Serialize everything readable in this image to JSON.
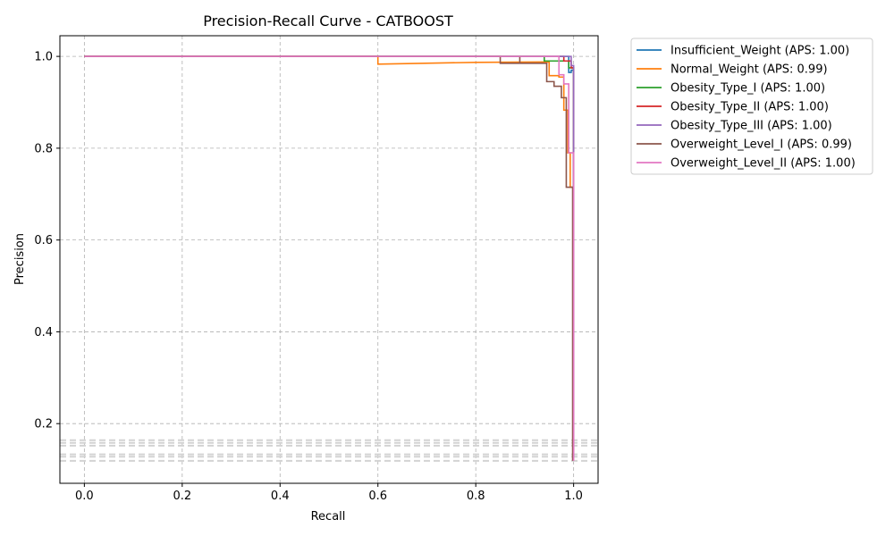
{
  "chart_data": {
    "type": "line",
    "title": "Precision-Recall Curve - CATBOOST",
    "xlabel": "Recall",
    "ylabel": "Precision",
    "xlim": [
      -0.05,
      1.05
    ],
    "ylim": [
      0.07,
      1.045
    ],
    "xticks": [
      0.0,
      0.2,
      0.4,
      0.6,
      0.8,
      1.0
    ],
    "xtick_labels": [
      "0.0",
      "0.2",
      "0.4",
      "0.6",
      "0.8",
      "1.0"
    ],
    "yticks": [
      0.2,
      0.4,
      0.6,
      0.8,
      1.0
    ],
    "ytick_labels": [
      "0.2",
      "0.4",
      "0.6",
      "0.8",
      "1.0"
    ],
    "grid": true,
    "legend_position": "outside-right",
    "baselines": [
      0.119,
      0.128,
      0.133,
      0.152,
      0.158,
      0.164
    ],
    "baseline_color": "#d3d3d3",
    "series": [
      {
        "name": "Insufficient_Weight (APS: 1.00)",
        "color": "#1f77b4",
        "points": [
          [
            0,
            1.0
          ],
          [
            0.99,
            1.0
          ],
          [
            0.99,
            0.965
          ],
          [
            0.995,
            0.965
          ],
          [
            0.995,
            0.97
          ],
          [
            1.0,
            0.97
          ],
          [
            1.0,
            0.128
          ]
        ]
      },
      {
        "name": "Normal_Weight (APS: 0.99)",
        "color": "#ff7f0e",
        "points": [
          [
            0,
            1.0
          ],
          [
            0.6,
            1.0
          ],
          [
            0.6,
            0.983
          ],
          [
            0.8,
            0.987
          ],
          [
            0.95,
            0.988
          ],
          [
            0.95,
            0.958
          ],
          [
            0.97,
            0.958
          ],
          [
            0.97,
            0.955
          ],
          [
            0.98,
            0.955
          ],
          [
            0.98,
            0.883
          ],
          [
            0.988,
            0.883
          ],
          [
            0.988,
            0.79
          ],
          [
            0.993,
            0.79
          ],
          [
            0.993,
            0.715
          ],
          [
            1.0,
            0.715
          ],
          [
            1.0,
            0.164
          ]
        ]
      },
      {
        "name": "Obesity_Type_I (APS: 1.00)",
        "color": "#2ca02c",
        "points": [
          [
            0,
            1.0
          ],
          [
            0.94,
            1.0
          ],
          [
            0.94,
            0.99
          ],
          [
            0.99,
            0.99
          ],
          [
            0.99,
            0.975
          ],
          [
            1.0,
            0.975
          ],
          [
            1.0,
            0.158
          ]
        ]
      },
      {
        "name": "Obesity_Type_II (APS: 1.00)",
        "color": "#d62728",
        "points": [
          [
            0,
            1.0
          ],
          [
            0.98,
            1.0
          ],
          [
            0.98,
            0.99
          ],
          [
            0.995,
            0.99
          ],
          [
            0.995,
            0.975
          ],
          [
            1.0,
            0.975
          ],
          [
            1.0,
            0.152
          ]
        ]
      },
      {
        "name": "Obesity_Type_III (APS: 1.00)",
        "color": "#9467bd",
        "points": [
          [
            0,
            1.0
          ],
          [
            0.995,
            1.0
          ],
          [
            0.995,
            0.98
          ],
          [
            1.0,
            0.98
          ],
          [
            1.0,
            0.133
          ]
        ]
      },
      {
        "name": "Overweight_Level_I (APS: 0.99)",
        "color": "#8c564b",
        "points": [
          [
            0,
            1.0
          ],
          [
            0.85,
            1.0
          ],
          [
            0.85,
            0.985
          ],
          [
            0.89,
            0.985
          ],
          [
            0.89,
            1.0
          ],
          [
            0.89,
            0.985
          ],
          [
            0.945,
            0.985
          ],
          [
            0.945,
            0.945
          ],
          [
            0.96,
            0.945
          ],
          [
            0.96,
            0.935
          ],
          [
            0.975,
            0.935
          ],
          [
            0.975,
            0.91
          ],
          [
            0.985,
            0.91
          ],
          [
            0.985,
            0.715
          ],
          [
            0.998,
            0.715
          ],
          [
            0.998,
            0.119
          ]
        ]
      },
      {
        "name": "Overweight_Level_II (APS: 1.00)",
        "color": "#e377c2",
        "points": [
          [
            0,
            1.0
          ],
          [
            0.97,
            1.0
          ],
          [
            0.97,
            0.96
          ],
          [
            0.98,
            0.96
          ],
          [
            0.98,
            0.94
          ],
          [
            0.99,
            0.94
          ],
          [
            0.99,
            0.79
          ],
          [
            1.0,
            0.79
          ],
          [
            1.0,
            0.119
          ]
        ]
      }
    ]
  }
}
